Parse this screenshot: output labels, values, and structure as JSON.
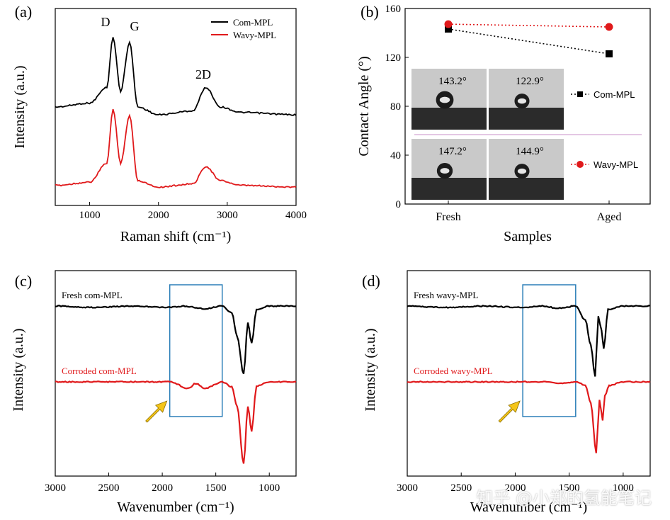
{
  "chart_data": [
    {
      "panel": "(a)",
      "type": "line",
      "xlabel": "Raman shift (cm⁻¹)",
      "ylabel": "Intensity (a.u.)",
      "xlim": [
        500,
        4000
      ],
      "xticks": [
        "1000",
        "2000",
        "3000",
        "4000"
      ],
      "grid": false,
      "legend_position": "top-right",
      "annotations": [
        "D",
        "G",
        "2D"
      ],
      "series": [
        {
          "name": "Com-MPL",
          "color": "#000000",
          "x": [
            500,
            1000,
            1250,
            1340,
            1450,
            1580,
            1700,
            2000,
            2500,
            2690,
            2900,
            3200,
            4000
          ],
          "y": [
            0.1,
            0.15,
            0.35,
            1.0,
            0.3,
            0.93,
            0.1,
            0.0,
            0.05,
            0.35,
            0.1,
            0.03,
            0.0
          ]
        },
        {
          "name": "Wavy-MPL",
          "color": "#e0191b",
          "x": [
            500,
            1000,
            1250,
            1340,
            1450,
            1580,
            1700,
            2000,
            2500,
            2690,
            2900,
            3200,
            4000
          ],
          "y": [
            0.02,
            0.06,
            0.3,
            0.98,
            0.3,
            0.9,
            0.08,
            0.0,
            0.04,
            0.26,
            0.08,
            0.02,
            0.0
          ]
        }
      ]
    },
    {
      "panel": "(b)",
      "type": "line",
      "xlabel": "Samples",
      "ylabel": "Contact Angle (°)",
      "categories": [
        "Fresh",
        "Aged"
      ],
      "ylim": [
        0,
        160
      ],
      "yticks": [
        "0",
        "40",
        "80",
        "120",
        "160"
      ],
      "legend_position": "right",
      "series": [
        {
          "name": "Com-MPL",
          "color": "#000000",
          "marker": "square",
          "values": [
            143.2,
            122.9
          ]
        },
        {
          "name": "Wavy-MPL",
          "color": "#e0191b",
          "marker": "circle",
          "values": [
            147.2,
            144.9
          ]
        }
      ],
      "inset_labels": [
        "143.2°",
        "122.9°",
        "147.2°",
        "144.9°"
      ]
    },
    {
      "panel": "(c)",
      "type": "line",
      "xlabel": "Wavenumber (cm⁻¹)",
      "ylabel": "Intensity (a.u.)",
      "xlim": [
        3000,
        750
      ],
      "xticks": [
        "3000",
        "2500",
        "2000",
        "1500",
        "1000"
      ],
      "highlight_range": [
        1930,
        1440
      ],
      "series": [
        {
          "name": "Fresh com-MPL",
          "color": "#000000",
          "x": [
            3000,
            2650,
            2300,
            1930,
            1800,
            1600,
            1440,
            1350,
            1300,
            1240,
            1200,
            1165,
            1120,
            1000,
            750
          ],
          "y": [
            0,
            -0.02,
            0,
            -0.02,
            0.0,
            -0.04,
            0.0,
            -0.1,
            -0.45,
            -1.0,
            -0.25,
            -0.55,
            -0.05,
            0.0,
            0.0
          ]
        },
        {
          "name": "Corroded com-MPL",
          "color": "#e0191b",
          "x": [
            3000,
            2600,
            2200,
            1930,
            1750,
            1690,
            1600,
            1440,
            1350,
            1300,
            1240,
            1200,
            1165,
            1120,
            1000,
            750
          ],
          "y": [
            0,
            0.0,
            0.0,
            0.0,
            -0.08,
            -0.02,
            -0.08,
            0.0,
            -0.06,
            -0.3,
            -1.0,
            -0.3,
            -0.6,
            -0.05,
            0.0,
            0.0
          ]
        }
      ]
    },
    {
      "panel": "(d)",
      "type": "line",
      "xlabel": "Wavenumber (cm⁻¹)",
      "ylabel": "Intensity (a.u.)",
      "xlim": [
        3000,
        750
      ],
      "xticks": [
        "3000",
        "2500",
        "2000",
        "1500",
        "1000"
      ],
      "highlight_range": [
        1930,
        1440
      ],
      "series": [
        {
          "name": "Fresh wavy-MPL",
          "color": "#000000",
          "x": [
            3000,
            2650,
            2300,
            1930,
            1750,
            1600,
            1440,
            1350,
            1300,
            1260,
            1230,
            1200,
            1180,
            1140,
            1000,
            750
          ],
          "y": [
            0,
            -0.02,
            0,
            -0.02,
            0.0,
            -0.03,
            0.0,
            -0.2,
            -0.55,
            -1.0,
            -0.15,
            -0.35,
            -0.6,
            -0.05,
            0.0,
            0.0
          ]
        },
        {
          "name": "Corroded wavy-MPL",
          "color": "#e0191b",
          "x": [
            3000,
            2600,
            2200,
            1930,
            1750,
            1600,
            1440,
            1350,
            1300,
            1250,
            1220,
            1190,
            1170,
            1130,
            1000,
            750
          ],
          "y": [
            0,
            0.0,
            0.0,
            0.0,
            0.0,
            -0.02,
            0.0,
            -0.05,
            -0.3,
            -1.0,
            -0.25,
            -0.55,
            -0.2,
            -0.05,
            0.0,
            0.0
          ]
        }
      ]
    }
  ],
  "watermark": "知乎 @小郑的氢能笔记"
}
